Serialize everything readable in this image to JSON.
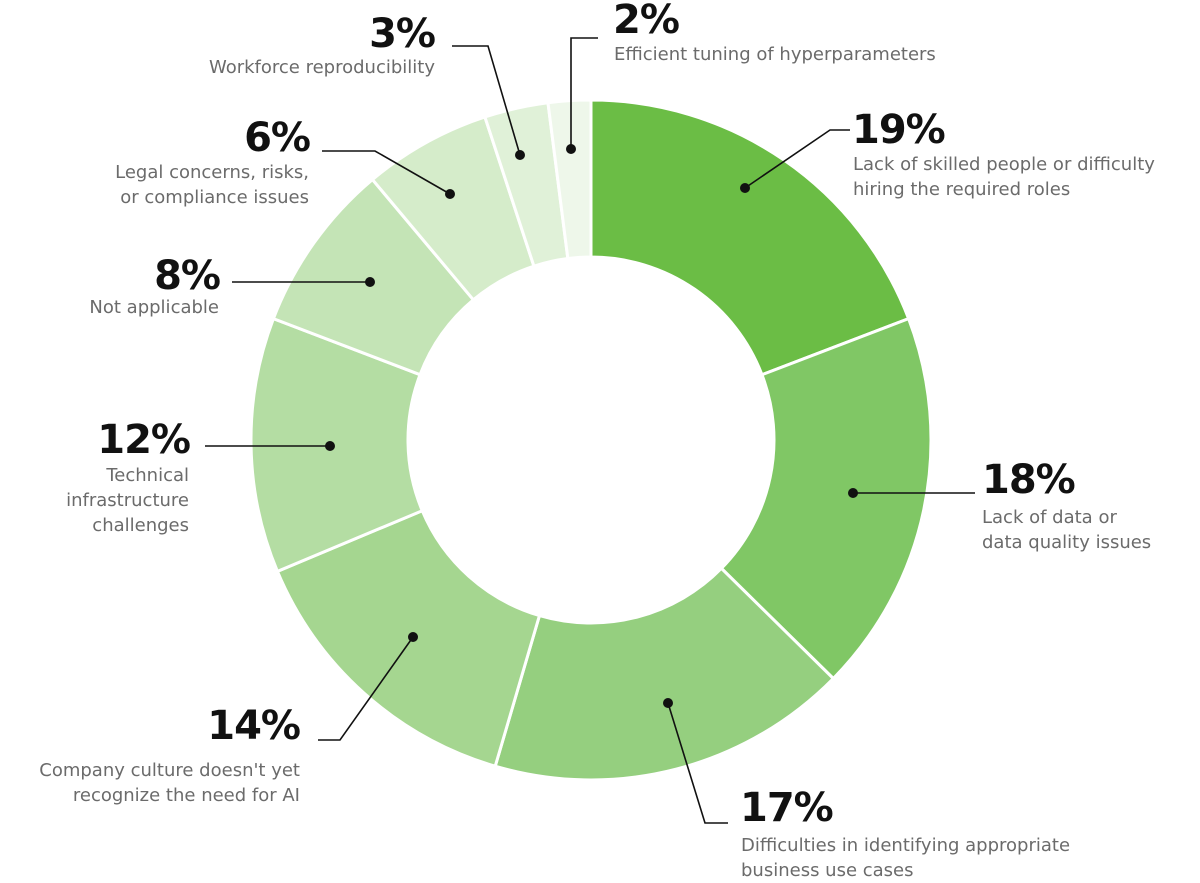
{
  "chart_data": {
    "type": "pie",
    "variant": "donut",
    "title": "",
    "start_angle": "12 o'clock, clockwise",
    "categories": [
      "Lack of skilled people or difficulty hiring the required roles",
      "Lack of data or data quality issues",
      "Difficulties in identifying appropriate business use cases",
      "Company culture doesn't yet recognize the need for AI",
      "Technical infrastructure challenges",
      "Not applicable",
      "Legal concerns, risks, or compliance issues",
      "Workforce reproducibility",
      "Efficient tuning of hyperparameters"
    ],
    "values": [
      19,
      18,
      17,
      14,
      12,
      8,
      6,
      3,
      2
    ],
    "unit": "%",
    "colors": [
      "#6bbd45",
      "#80c765",
      "#95cf7f",
      "#a5d690",
      "#b4dda3",
      "#c4e4b6",
      "#d5ecca",
      "#e0f1d8",
      "#eef7ea"
    ]
  },
  "labels": [
    {
      "pct": "19%",
      "text": "Lack of skilled people or difficulty\nhiring the required roles"
    },
    {
      "pct": "18%",
      "text": "Lack of data or\ndata quality issues"
    },
    {
      "pct": "17%",
      "text": "Difficulties in identifying appropriate\nbusiness use cases"
    },
    {
      "pct": "14%",
      "text": "Company culture doesn't yet\nrecognize the need for AI"
    },
    {
      "pct": "12%",
      "text": "Technical\ninfrastructure\nchallenges"
    },
    {
      "pct": "8%",
      "text": "Not applicable"
    },
    {
      "pct": "6%",
      "text": "Legal concerns, risks,\nor compliance issues"
    },
    {
      "pct": "3%",
      "text": "Workforce reproducibility"
    },
    {
      "pct": "2%",
      "text": "Efficient tuning of hyperparameters"
    }
  ]
}
